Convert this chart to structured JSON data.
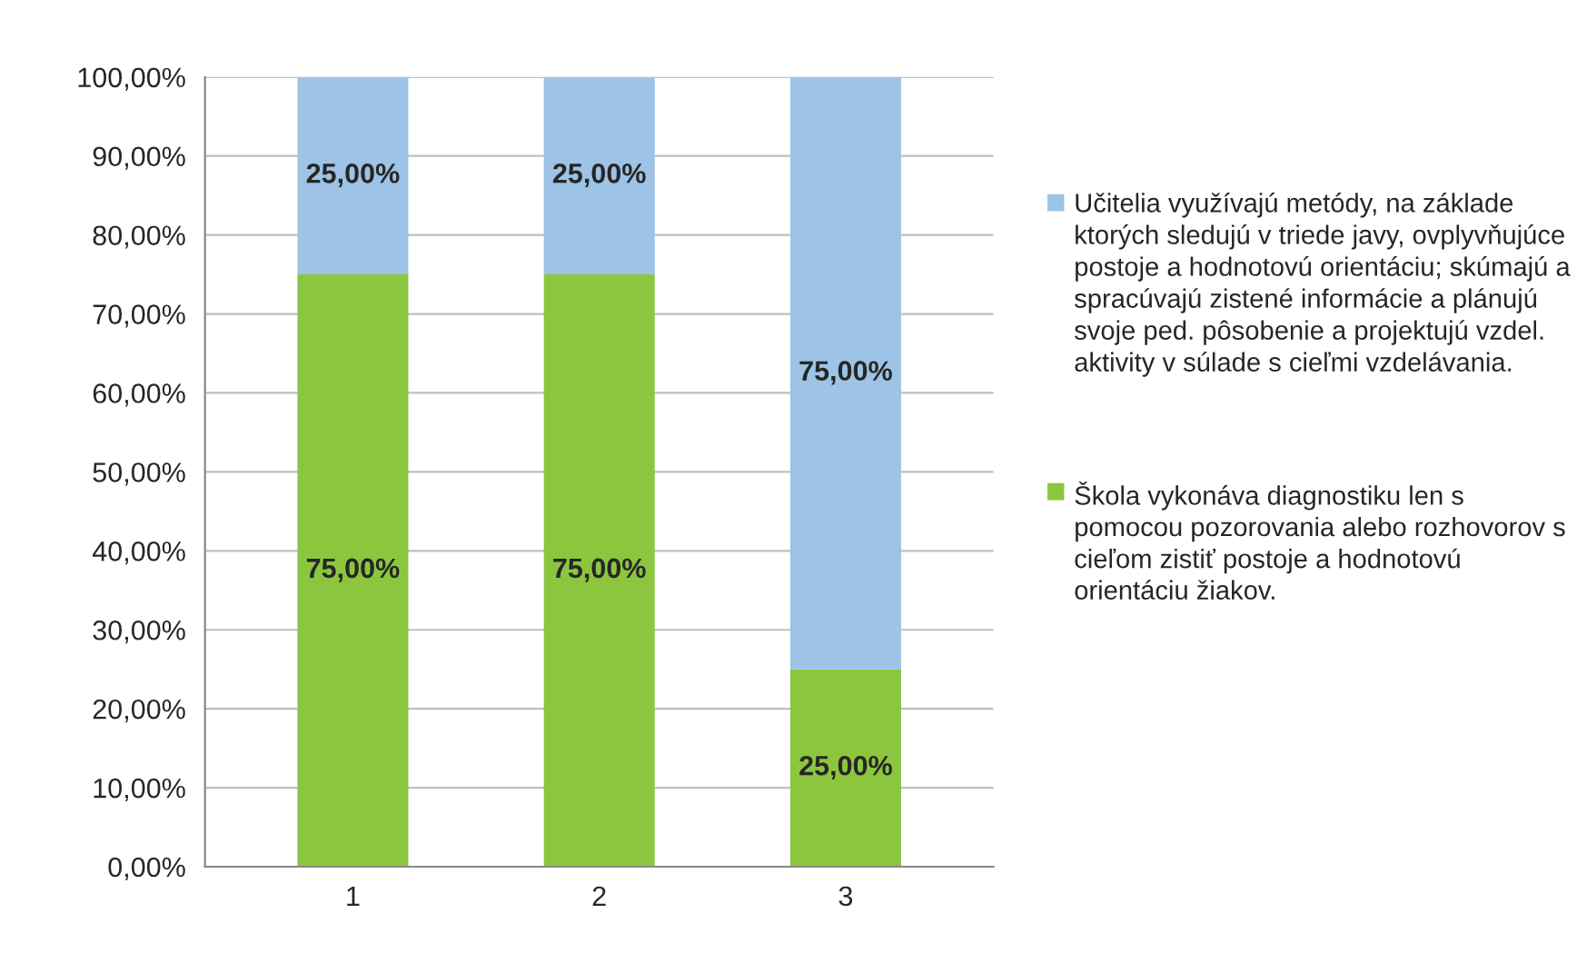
{
  "chart_data": {
    "type": "bar",
    "stacked": true,
    "categories": [
      "1",
      "2",
      "3"
    ],
    "series": [
      {
        "name": "Škola vykonáva diagnostiku len s pomocou pozorovania alebo rozhovorov s cieľom zistiť postoje a hodnotovú orientáciu žiakov.",
        "color": "#8cc63f",
        "values": [
          75,
          75,
          25
        ],
        "value_labels": [
          "75,00%",
          "75,00%",
          "25,00%"
        ]
      },
      {
        "name": "Učitelia využívajú metódy, na základe ktorých sledujú v triede javy, ovplyvňujúce postoje a hodnotovú orientáciu; skúmajú a spracúvajú zistené informácie a plánujú svoje ped. pôsobenie a projektujú vzdel. aktivity v súlade s cieľmi vzdelávania.",
        "color": "#9dc3e6",
        "values": [
          25,
          25,
          75
        ],
        "value_labels": [
          "25,00%",
          "25,00%",
          "75,00%"
        ]
      }
    ],
    "ylim": [
      0,
      100
    ],
    "yticks": [
      {
        "value": 0,
        "label": "0,00%"
      },
      {
        "value": 10,
        "label": "10,00%"
      },
      {
        "value": 20,
        "label": "20,00%"
      },
      {
        "value": 30,
        "label": "30,00%"
      },
      {
        "value": 40,
        "label": "40,00%"
      },
      {
        "value": 50,
        "label": "50,00%"
      },
      {
        "value": 60,
        "label": "60,00%"
      },
      {
        "value": 70,
        "label": "70,00%"
      },
      {
        "value": 80,
        "label": "80,00%"
      },
      {
        "value": 90,
        "label": "90,00%"
      },
      {
        "value": 100,
        "label": "100,00%"
      }
    ],
    "grid": "y",
    "legend": "right"
  }
}
